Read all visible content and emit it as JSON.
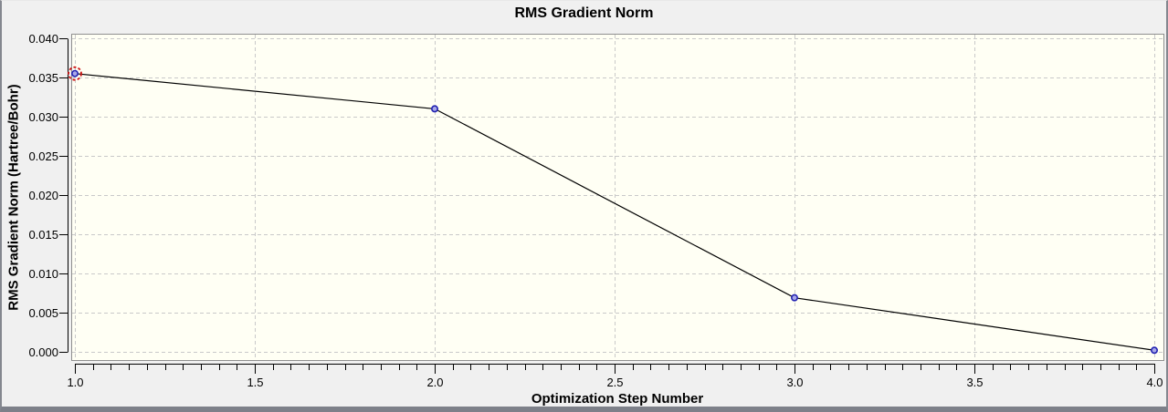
{
  "chart_data": {
    "type": "line",
    "title": "RMS Gradient Norm",
    "xlabel": "Optimization Step Number",
    "ylabel": "RMS Gradient Norm (Hartree/Bohr)",
    "x": [
      1,
      2,
      3,
      4
    ],
    "values": [
      0.0355,
      0.031,
      0.0069,
      0.0002
    ],
    "xlim": [
      1.0,
      4.0
    ],
    "ylim": [
      0.0,
      0.04
    ],
    "x_ticks": [
      1.0,
      1.5,
      2.0,
      2.5,
      3.0,
      3.5,
      4.0
    ],
    "x_tick_labels": [
      "1.0",
      "1.5",
      "2.0",
      "2.5",
      "3.0",
      "3.5",
      "4.0"
    ],
    "x_minor_tick_step": 0.05,
    "y_ticks": [
      0.0,
      0.005,
      0.01,
      0.015,
      0.02,
      0.025,
      0.03,
      0.035,
      0.04
    ],
    "y_tick_labels": [
      "0.000",
      "0.005",
      "0.010",
      "0.015",
      "0.020",
      "0.025",
      "0.030",
      "0.035",
      "0.040"
    ],
    "grid": true,
    "legend": "none",
    "selected_point_index": 0,
    "colors": {
      "line": "#000000",
      "marker_stroke": "#2222b2",
      "marker_fill": "#a8a8e8",
      "selection_ring": "#cc1111",
      "plot_background": "#fffff4",
      "plot_border": "#8f8f8f",
      "grid": "#c9c9c9",
      "window_background": "#f0f0f0",
      "axis": "#000000"
    }
  }
}
